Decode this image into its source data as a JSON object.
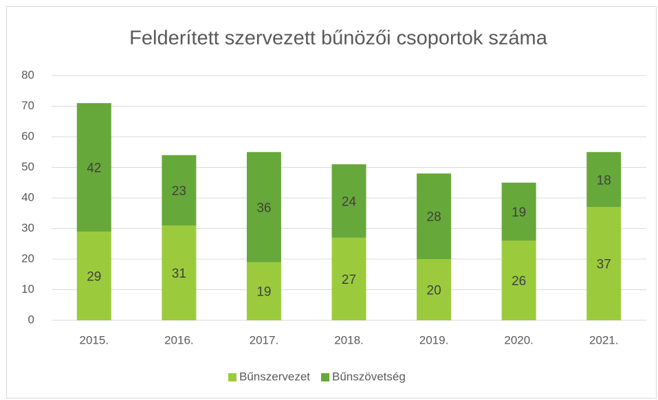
{
  "chart_data": {
    "type": "stacked_bar",
    "title": "Felderített szervezett bűnözői csoportok száma",
    "categories": [
      "2015.",
      "2016.",
      "2017.",
      "2018.",
      "2019.",
      "2020.",
      "2021."
    ],
    "series": [
      {
        "name": "Bűnszervezet",
        "color": "#9bcb3c",
        "values": [
          29,
          31,
          19,
          27,
          20,
          26,
          37
        ]
      },
      {
        "name": "Bűnszövetség",
        "color": "#67a83a",
        "values": [
          42,
          23,
          36,
          24,
          28,
          19,
          18
        ]
      }
    ],
    "ylim": [
      0,
      80
    ],
    "yticks": [
      0,
      10,
      20,
      30,
      40,
      50,
      60,
      70,
      80
    ],
    "grid": true,
    "legend": "bottom"
  }
}
